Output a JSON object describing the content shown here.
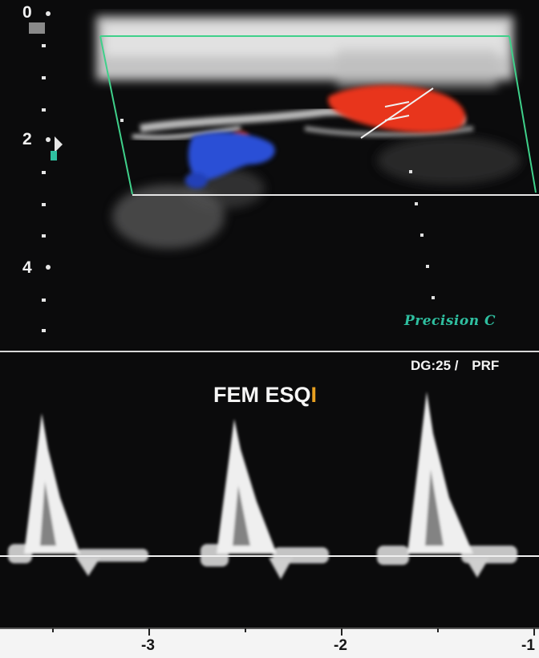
{
  "image_view": {
    "depth_scale": {
      "labels": [
        {
          "id": "depth-0",
          "text": "0"
        },
        {
          "id": "depth-2",
          "text": "2"
        },
        {
          "id": "depth-4",
          "text": "4"
        }
      ]
    },
    "brand_text": "Precision C",
    "color_box": {
      "border_color": "#3fd08a"
    }
  },
  "doppler_view": {
    "settings_text": {
      "gain": "DG:25 /",
      "prf": "PRF"
    },
    "study_title": "FEM ESQ",
    "study_title_suffix": "I",
    "suffix_color": "#e8a020",
    "time_axis": {
      "labels": [
        {
          "id": "time-3",
          "text": "-3"
        },
        {
          "id": "time-2",
          "text": "-2"
        },
        {
          "id": "time-1",
          "text": "-1"
        }
      ]
    }
  },
  "colors": {
    "background": "#0b0b0c",
    "flow_red": "#e8351c",
    "flow_blue": "#2a4fd6",
    "baseline": "#f0f0f0",
    "axis_strip": "#f4f4f4"
  }
}
